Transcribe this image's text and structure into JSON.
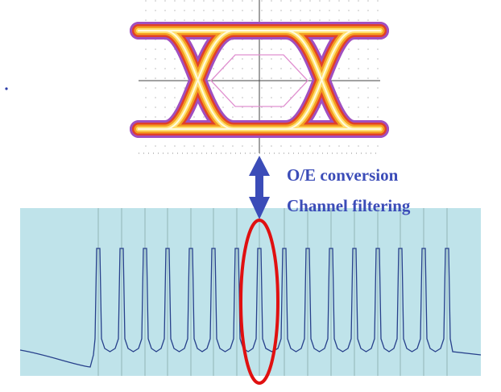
{
  "labels": {
    "line1": "O/E conversion",
    "line2": "Channel filtering"
  }
}
